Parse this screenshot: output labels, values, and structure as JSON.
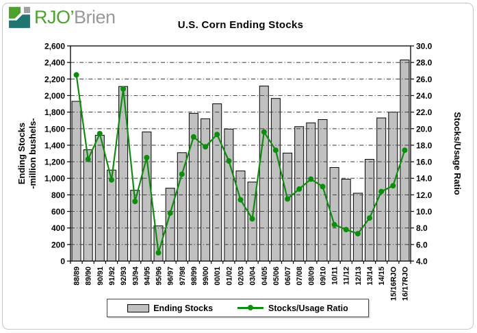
{
  "logo": {
    "primary": "RJO’",
    "secondary": "Brien",
    "icon_colors": {
      "green": "#4CA32B",
      "teal": "#1F7670",
      "gray": "#9BA1A3"
    }
  },
  "chart_data": {
    "type": "bar",
    "combo": "bar+line",
    "title": "U.S. Corn Ending Stocks",
    "categories": [
      "88/89",
      "89/90",
      "90/91",
      "91/92",
      "92/93",
      "93/94",
      "94/95",
      "95/96",
      "96/97",
      "97/98",
      "98/99",
      "99/00",
      "00/01",
      "01/02",
      "02/03",
      "03/04",
      "04/05",
      "05/06",
      "06/07",
      "07/08",
      "08/09",
      "09/10",
      "10/11",
      "11/12",
      "12/13",
      "13/14",
      "14/15",
      "15/16RJO",
      "16/17RJO"
    ],
    "series": [
      {
        "name": "Ending Stocks",
        "type": "bar",
        "axis": "left",
        "color": "#c0c0c0",
        "border": "#000000",
        "values": [
          1930,
          1345,
          1520,
          1100,
          2110,
          855,
          1560,
          425,
          880,
          1310,
          1785,
          1720,
          1900,
          1595,
          1090,
          955,
          2115,
          1965,
          1305,
          1625,
          1670,
          1710,
          1130,
          990,
          820,
          1230,
          1730,
          1800,
          2430
        ]
      },
      {
        "name": "Stocks/Usage Ratio",
        "type": "line",
        "axis": "right",
        "color": "#0a8f0a",
        "values": [
          26.5,
          16.3,
          19.4,
          13.8,
          24.8,
          11.2,
          16.5,
          5.0,
          9.8,
          14.5,
          19.0,
          17.8,
          19.3,
          16.1,
          11.4,
          9.1,
          19.6,
          17.4,
          11.5,
          12.7,
          13.9,
          13.0,
          8.4,
          7.8,
          7.3,
          9.2,
          12.4,
          13.1,
          17.4
        ]
      }
    ],
    "left_axis": {
      "title_line1": "Ending Stocks",
      "title_line2": "-million bushels-",
      "min": 0,
      "max": 2600,
      "step": 200,
      "tick_labels": [
        "0",
        "200",
        "400",
        "600",
        "800",
        "1,000",
        "1,200",
        "1,400",
        "1,600",
        "1,800",
        "2,000",
        "2,200",
        "2,400",
        "2,600"
      ]
    },
    "right_axis": {
      "title": "Stocks/Usage Ratio",
      "min": 4,
      "max": 30,
      "step": 2,
      "tick_labels": [
        "4.0",
        "6.0",
        "8.0",
        "10.0",
        "12.0",
        "14.0",
        "16.0",
        "18.0",
        "20.0",
        "22.0",
        "24.0",
        "26.0",
        "28.0",
        "30.0"
      ]
    },
    "grid": "on",
    "grid_color": "#4a4a4a",
    "legend_position": "bottom-center",
    "legend": [
      "Ending Stocks",
      "Stocks/Usage Ratio"
    ]
  }
}
